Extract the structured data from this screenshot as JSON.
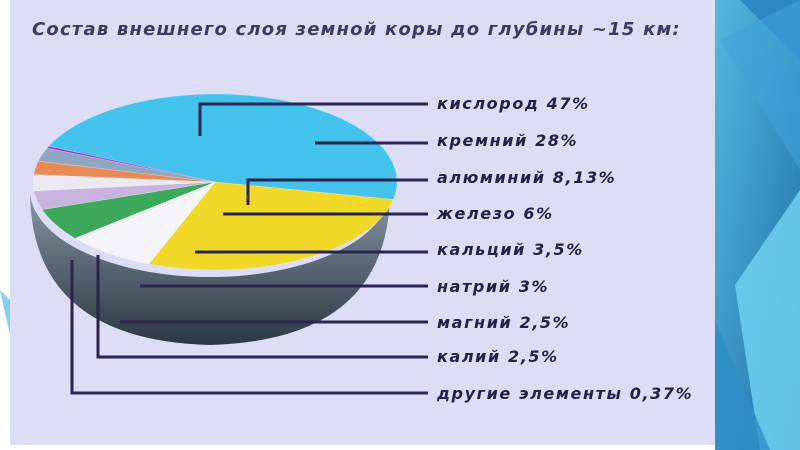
{
  "slide": {
    "title": "Состав внешнего слоя земной коры до глубины ~15 км:"
  },
  "chart_data": {
    "type": "pie",
    "title": "Состав внешнего слоя земной коры до глубины ~15 км:",
    "series": [
      {
        "label": "кислород 47%",
        "value": 47,
        "color": "#43c2ec"
      },
      {
        "label": "кремний 28%",
        "value": 28,
        "color": "#f0d829"
      },
      {
        "label": "алюминий 8,13%",
        "value": 8.13,
        "color": "#f4f4f8"
      },
      {
        "label": "железо 6%",
        "value": 6,
        "color": "#3ca85a"
      },
      {
        "label": "кальций 3,5%",
        "value": 3.5,
        "color": "#c8b2de"
      },
      {
        "label": "натрий 3%",
        "value": 3,
        "color": "#e9e9f0"
      },
      {
        "label": "магний 2,5%",
        "value": 2.5,
        "color": "#e78a55"
      },
      {
        "label": "калий 2,5%",
        "value": 2.5,
        "color": "#8fa6c2"
      },
      {
        "label": "другие элементы 0,37%",
        "value": 0.37,
        "color": "#a02fd0"
      }
    ]
  }
}
